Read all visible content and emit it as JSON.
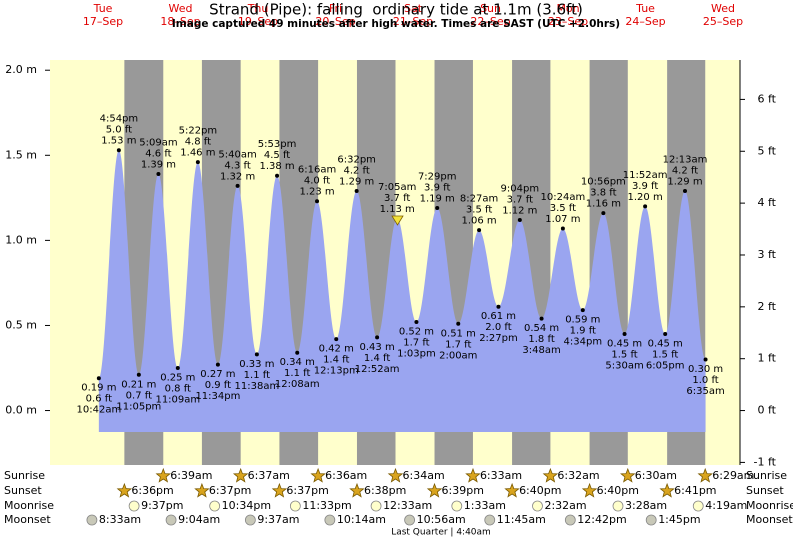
{
  "chart_data": {
    "type": "area",
    "title": "Strand (Pipe): falling  ordinary tide at 1.1m (3.6ft)",
    "subtitle": "Image captured 49 minutes after high water. Times are SAST (UTC +2.0hrs)",
    "color": "#9aa5f0",
    "day_color": "#ffffcc",
    "night_color": "#999999",
    "ylim": [
      -0.32,
      2.06
    ],
    "yticks": [
      {
        "value": 0,
        "label": "0.0 m"
      },
      {
        "value": 0.5,
        "label": "0.5 m"
      },
      {
        "value": 1,
        "label": "1.0 m"
      },
      {
        "value": 1.5,
        "label": "1.5 m"
      },
      {
        "value": 2,
        "label": "2.0 m"
      }
    ],
    "y2lim": [
      -1.05,
      6.76
    ],
    "y2ticks": [
      {
        "value": -1,
        "label": "-1 ft"
      },
      {
        "value": 0,
        "label": "0 ft"
      },
      {
        "value": 1,
        "label": "1 ft"
      },
      {
        "value": 2,
        "label": "2 ft"
      },
      {
        "value": 3,
        "label": "3 ft"
      },
      {
        "value": 4,
        "label": "4 ft"
      },
      {
        "value": 5,
        "label": "5 ft"
      },
      {
        "value": 6,
        "label": "6 ft"
      }
    ],
    "row_labels": [
      "Sunrise",
      "Sunset",
      "Moonrise",
      "Moonset"
    ],
    "moon_phase": "Last Quarter | 4:40am",
    "days": [
      {
        "weekday": "Tue",
        "date": "17–Sep",
        "sunrise": null,
        "sunset": "6:36pm",
        "moonrise": "9:37pm",
        "moonset": "8:33am",
        "tides": [
          {
            "time": "10:42am",
            "m": 0.19,
            "m_label": "0.19 m",
            "ft_label": "0.6 ft"
          },
          {
            "time": "4:54pm",
            "m": 1.53,
            "m_label": "1.53 m",
            "ft_label": "5.0 ft"
          },
          {
            "time": "11:05pm",
            "m": 0.21,
            "m_label": "0.21 m",
            "ft_label": "0.7 ft"
          }
        ]
      },
      {
        "weekday": "Wed",
        "date": "18–Sep",
        "sunrise": "6:39am",
        "sunset": "6:37pm",
        "moonrise": "10:34pm",
        "moonset": "9:04am",
        "tides": [
          {
            "time": "5:09am",
            "m": 1.39,
            "m_label": "1.39 m",
            "ft_label": "4.6 ft"
          },
          {
            "time": "11:09am",
            "m": 0.25,
            "m_label": "0.25 m",
            "ft_label": "0.8 ft"
          },
          {
            "time": "5:22pm",
            "m": 1.46,
            "m_label": "1.46 m",
            "ft_label": "4.8 ft"
          },
          {
            "time": "11:34pm",
            "m": 0.27,
            "m_label": "0.27 m",
            "ft_label": "0.9 ft"
          }
        ]
      },
      {
        "weekday": "Thu",
        "date": "19–Sep",
        "sunrise": "6:37am",
        "sunset": "6:37pm",
        "moonrise": "11:33pm",
        "moonset": "9:37am",
        "tides": [
          {
            "time": "5:40am",
            "m": 1.32,
            "m_label": "1.32 m",
            "ft_label": "4.3 ft"
          },
          {
            "time": "11:38am",
            "m": 0.33,
            "m_label": "0.33 m",
            "ft_label": "1.1 ft"
          },
          {
            "time": "5:53pm",
            "m": 1.38,
            "m_label": "1.38 m",
            "ft_label": "4.5 ft"
          }
        ]
      },
      {
        "weekday": "Fri",
        "date": "20–Sep",
        "sunrise": "6:36am",
        "sunset": "6:38pm",
        "moonrise": null,
        "moonset": "10:14am",
        "tides": [
          {
            "time": "12:08am",
            "m": 0.34,
            "m_label": "0.34 m",
            "ft_label": "1.1 ft"
          },
          {
            "time": "6:16am",
            "m": 1.23,
            "m_label": "1.23 m",
            "ft_label": "4.0 ft"
          },
          {
            "time": "12:13pm",
            "m": 0.42,
            "m_label": "0.42 m",
            "ft_label": "1.4 ft"
          },
          {
            "time": "6:32pm",
            "m": 1.29,
            "m_label": "1.29 m",
            "ft_label": "4.2 ft"
          }
        ]
      },
      {
        "weekday": "Sat",
        "date": "21–Sep",
        "sunrise": "6:34am",
        "sunset": "6:39pm",
        "moonrise": "12:33am",
        "moonset": "10:56am",
        "tides": [
          {
            "time": "12:52am",
            "m": 0.43,
            "m_label": "0.43 m",
            "ft_label": "1.4 ft"
          },
          {
            "time": "7:05am",
            "m": 1.13,
            "m_label": "1.13 m",
            "ft_label": "3.7 ft"
          },
          {
            "time": "1:03pm",
            "m": 0.52,
            "m_label": "0.52 m",
            "ft_label": "1.7 ft"
          },
          {
            "time": "7:29pm",
            "m": 1.19,
            "m_label": "1.19 m",
            "ft_label": "3.9 ft"
          }
        ]
      },
      {
        "weekday": "Sun",
        "date": "22–Sep",
        "sunrise": "6:33am",
        "sunset": "6:40pm",
        "moonrise": "1:33am",
        "moonset": "11:45am",
        "tides": [
          {
            "time": "2:00am",
            "m": 0.51,
            "m_label": "0.51 m",
            "ft_label": "1.7 ft"
          },
          {
            "time": "8:27am",
            "m": 1.06,
            "m_label": "1.06 m",
            "ft_label": "3.5 ft"
          },
          {
            "time": "2:27pm",
            "m": 0.61,
            "m_label": "0.61 m",
            "ft_label": "2.0 ft"
          },
          {
            "time": "9:04pm",
            "m": 1.12,
            "m_label": "1.12 m",
            "ft_label": "3.7 ft"
          }
        ]
      },
      {
        "weekday": "Mon",
        "date": "23–Sep",
        "sunrise": "6:32am",
        "sunset": "6:40pm",
        "moonrise": "2:32am",
        "moonset": "12:42pm",
        "tides": [
          {
            "time": "3:48am",
            "m": 0.54,
            "m_label": "0.54 m",
            "ft_label": "1.8 ft"
          },
          {
            "time": "10:24am",
            "m": 1.07,
            "m_label": "1.07 m",
            "ft_label": "3.5 ft"
          },
          {
            "time": "4:34pm",
            "m": 0.59,
            "m_label": "0.59 m",
            "ft_label": "1.9 ft"
          },
          {
            "time": "10:56pm",
            "m": 1.16,
            "m_label": "1.16 m",
            "ft_label": "3.8 ft"
          }
        ]
      },
      {
        "weekday": "Tue",
        "date": "24–Sep",
        "sunrise": "6:30am",
        "sunset": "6:41pm",
        "moonrise": "3:28am",
        "moonset": "1:45pm",
        "tides": [
          {
            "time": "5:30am",
            "m": 0.45,
            "m_label": "0.45 m",
            "ft_label": "1.5 ft"
          },
          {
            "time": "11:52am",
            "m": 1.2,
            "m_label": "1.20 m",
            "ft_label": "3.9 ft"
          },
          {
            "time": "6:05pm",
            "m": 0.45,
            "m_label": "0.45 m",
            "ft_label": "1.5 ft"
          }
        ]
      },
      {
        "weekday": "Wed",
        "date": "25–Sep",
        "sunrise": "6:29am",
        "sunset": null,
        "moonrise": "4:19am",
        "moonset": null,
        "tides": [
          {
            "time": "12:13am",
            "m": 1.29,
            "m_label": "1.29 m",
            "ft_label": "4.2 ft"
          },
          {
            "time": "6:35am",
            "m": 0.3,
            "m_label": "0.30 m",
            "ft_label": "1.0 ft"
          }
        ]
      }
    ]
  }
}
